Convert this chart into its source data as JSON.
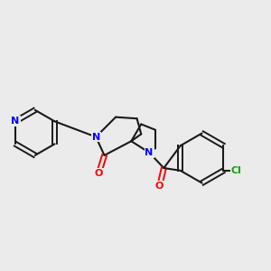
{
  "background_color": "#ebebeb",
  "bond_color": "#1a1a1a",
  "atom_colors": {
    "N": "#0000ff",
    "O": "#ff0000",
    "Cl": "#00aa00"
  },
  "figsize": [
    3.0,
    3.0
  ],
  "dpi": 100
}
